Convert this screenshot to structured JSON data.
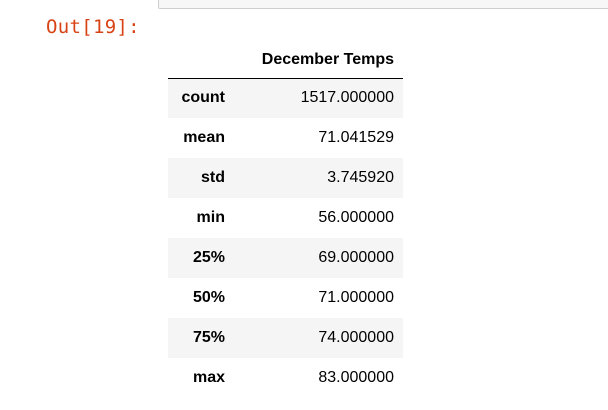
{
  "output": {
    "prompt_label": "Out[19]:"
  },
  "dataframe": {
    "column_header": "December Temps",
    "rows": [
      {
        "label": "count",
        "value": "1517.000000"
      },
      {
        "label": "mean",
        "value": "71.041529"
      },
      {
        "label": "std",
        "value": "3.745920"
      },
      {
        "label": "min",
        "value": "56.000000"
      },
      {
        "label": "25%",
        "value": "69.000000"
      },
      {
        "label": "50%",
        "value": "71.000000"
      },
      {
        "label": "75%",
        "value": "74.000000"
      },
      {
        "label": "max",
        "value": "83.000000"
      }
    ]
  }
}
